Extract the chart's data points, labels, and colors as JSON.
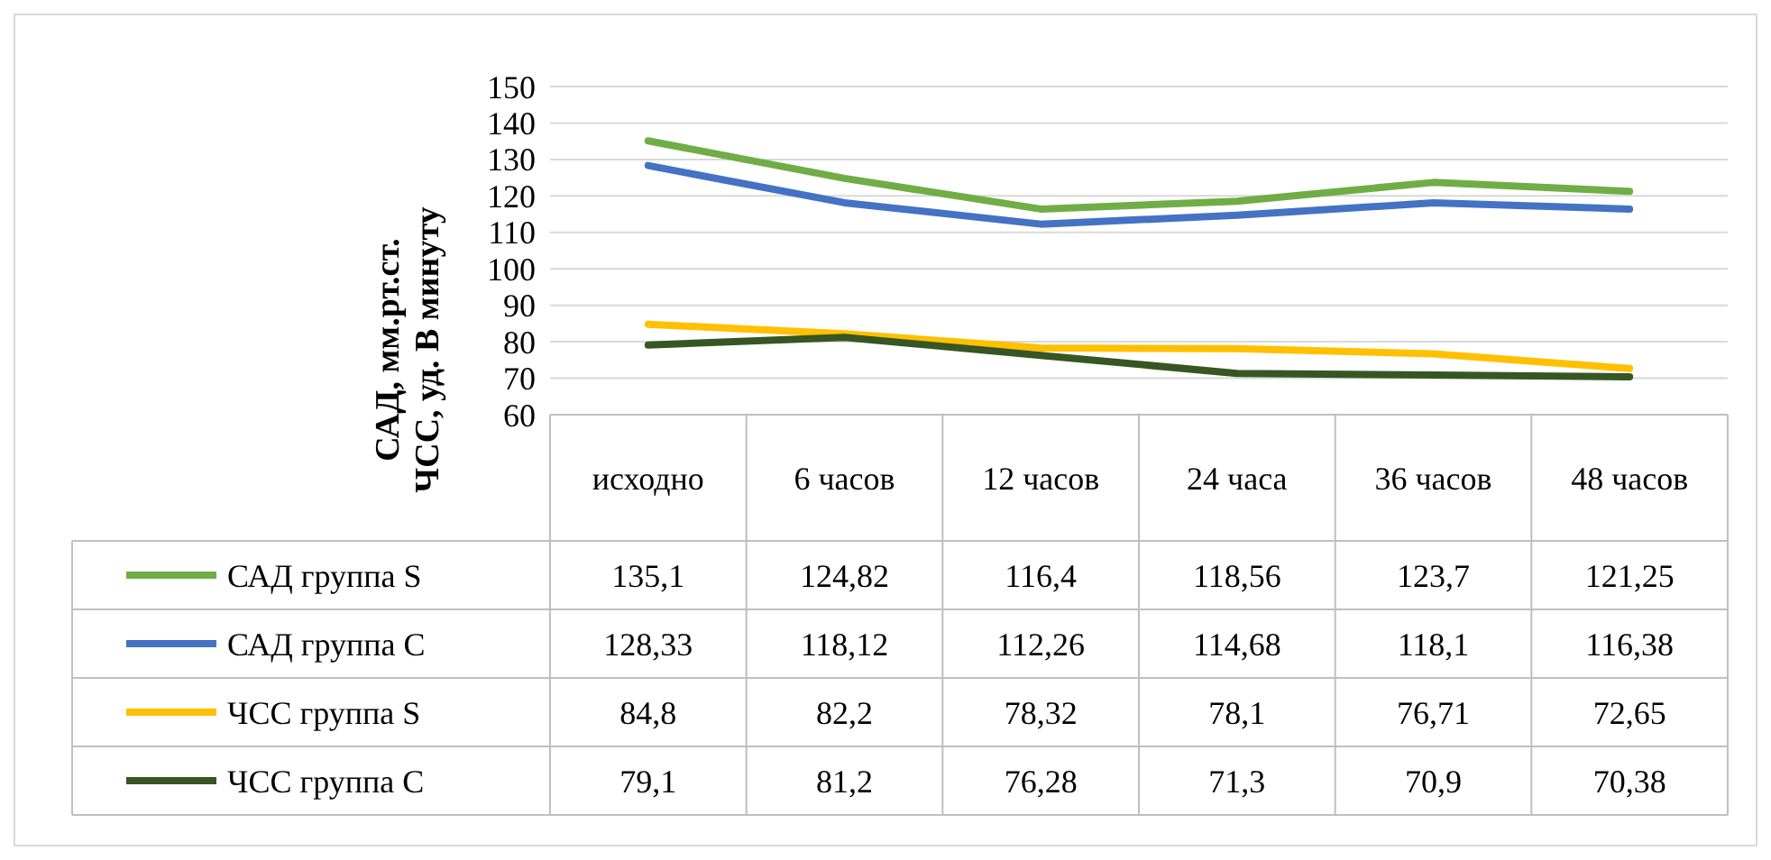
{
  "chart_data": {
    "type": "line",
    "ylabel": "САД, мм.рт.ст.\nЧСС, уд. В минуту",
    "categories": [
      "исходно",
      "6 часов",
      "12 часов",
      "24 часа",
      "36 часов",
      "48 часов"
    ],
    "series": [
      {
        "name": "САД группа S",
        "color": "#70ad47",
        "values": [
          135.1,
          124.82,
          116.4,
          118.56,
          123.7,
          121.25
        ],
        "value_labels": [
          "135,1",
          "124,82",
          "116,4",
          "118,56",
          "123,7",
          "121,25"
        ]
      },
      {
        "name": "САД группа С",
        "color": "#4472c4",
        "values": [
          128.33,
          118.12,
          112.26,
          114.68,
          118.1,
          116.38
        ],
        "value_labels": [
          "128,33",
          "118,12",
          "112,26",
          "114,68",
          "118,1",
          "116,38"
        ]
      },
      {
        "name": "ЧСС группа S",
        "color": "#ffc000",
        "values": [
          84.8,
          82.2,
          78.32,
          78.1,
          76.71,
          72.65
        ],
        "value_labels": [
          "84,8",
          "82,2",
          "78,32",
          "78,1",
          "76,71",
          "72,65"
        ]
      },
      {
        "name": "ЧСС группа С",
        "color": "#375623",
        "values": [
          79.1,
          81.2,
          76.28,
          71.3,
          70.9,
          70.38
        ],
        "value_labels": [
          "79,1",
          "81,2",
          "76,28",
          "71,3",
          "70,9",
          "70,38"
        ]
      }
    ],
    "ylim": [
      60,
      150
    ],
    "yticks": [
      60,
      70,
      80,
      90,
      100,
      110,
      120,
      130,
      140,
      150
    ],
    "grid": "y",
    "legend": "bottom",
    "marker": "none",
    "line_style": "solid"
  }
}
